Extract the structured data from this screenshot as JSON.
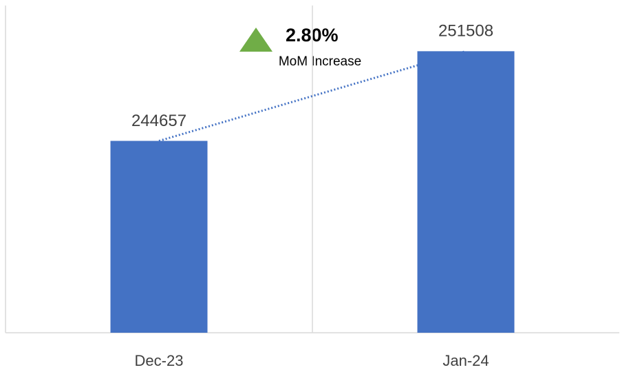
{
  "chart_data": {
    "type": "bar",
    "categories": [
      "Dec-23",
      "Jan-24"
    ],
    "values": [
      244657,
      251508
    ],
    "color": "#4472c4",
    "ylim": [
      230000,
      255000
    ],
    "trendline": {
      "color": "#4472c4",
      "style": "dotted"
    },
    "annotations": [
      {
        "text": "2.80%",
        "color": "#70ad47"
      },
      {
        "text": "MoM Increase"
      }
    ]
  }
}
